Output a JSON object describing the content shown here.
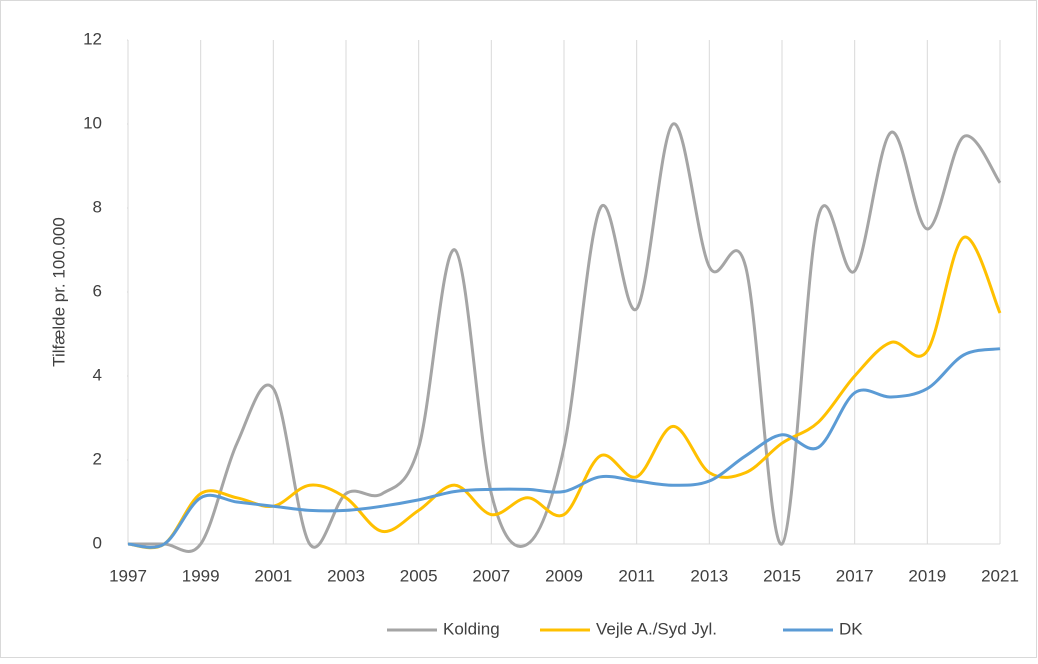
{
  "chart_data": {
    "type": "line",
    "y_label": "Tilfælde pr. 100.000",
    "x": [
      1997,
      1998,
      1999,
      2000,
      2001,
      2002,
      2003,
      2004,
      2005,
      2006,
      2007,
      2008,
      2009,
      2010,
      2011,
      2012,
      2013,
      2014,
      2015,
      2016,
      2017,
      2018,
      2019,
      2020,
      2021
    ],
    "series": [
      {
        "name": "Kolding",
        "color": "#a5a5a5",
        "values": [
          0,
          0,
          0,
          2.4,
          3.7,
          0,
          1.2,
          1.2,
          2.3,
          7.0,
          1.2,
          0,
          2.3,
          8.0,
          5.6,
          10.0,
          6.6,
          6.6,
          0,
          7.8,
          6.5,
          9.8,
          7.5,
          9.7,
          8.6
        ]
      },
      {
        "name": "Vejle A./Syd Jyl.",
        "color": "#ffc000",
        "values": [
          0,
          0,
          1.2,
          1.1,
          0.9,
          1.4,
          1.1,
          0.3,
          0.8,
          1.4,
          0.7,
          1.1,
          0.7,
          2.1,
          1.6,
          2.8,
          1.7,
          1.7,
          2.4,
          2.9,
          4.0,
          4.8,
          4.6,
          7.3,
          5.5
        ]
      },
      {
        "name": "DK",
        "color": "#5b9bd5",
        "values": [
          0,
          0,
          1.1,
          1.0,
          0.9,
          0.8,
          0.8,
          0.9,
          1.05,
          1.25,
          1.3,
          1.3,
          1.25,
          1.6,
          1.5,
          1.4,
          1.5,
          2.1,
          2.6,
          2.3,
          3.6,
          3.5,
          3.7,
          4.5,
          4.65
        ]
      }
    ],
    "xlim": [
      1997,
      2021
    ],
    "xticks": [
      1997,
      1999,
      2001,
      2003,
      2005,
      2007,
      2009,
      2011,
      2013,
      2015,
      2017,
      2019,
      2021
    ],
    "ylim": [
      0,
      12
    ],
    "yticks": [
      0,
      2,
      4,
      6,
      8,
      10,
      12
    ],
    "grid": true,
    "legend": "bottom"
  }
}
